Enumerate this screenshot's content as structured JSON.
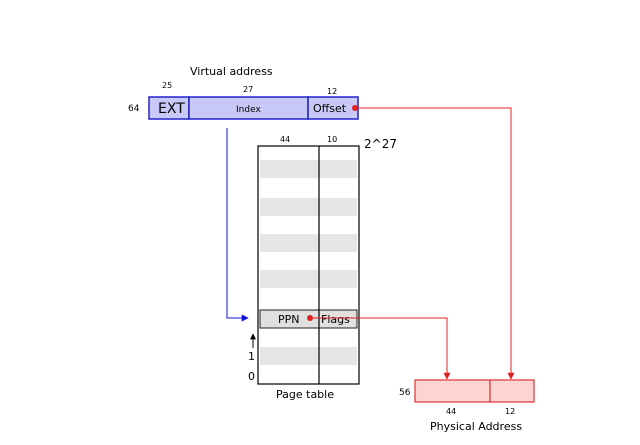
{
  "virtual_address": {
    "title": "Virtual address",
    "width_label": "64",
    "fields": [
      {
        "label": "EXT",
        "bits": "25"
      },
      {
        "label": "Index",
        "bits": "27"
      },
      {
        "label": "Offset",
        "bits": "12"
      }
    ]
  },
  "page_table": {
    "title": "Page table",
    "size_label": "2^27",
    "col_bits": [
      "44",
      "10"
    ],
    "entry": {
      "ppn": "PPN",
      "flags": "Flags"
    },
    "row_labels": [
      "1",
      "0"
    ]
  },
  "physical_address": {
    "title": "Physical Address",
    "width_label": "56",
    "bits": [
      "44",
      "12"
    ]
  },
  "colors": {
    "virtual_fill": "#c9c9f7",
    "virtual_stroke": "#2222cc",
    "physical_fill": "#fdd4d4",
    "physical_stroke": "#dd3333",
    "row_stripe": "#e6e6e6",
    "arrow_red": "#e02020",
    "arrow_blue": "#1010dd"
  }
}
